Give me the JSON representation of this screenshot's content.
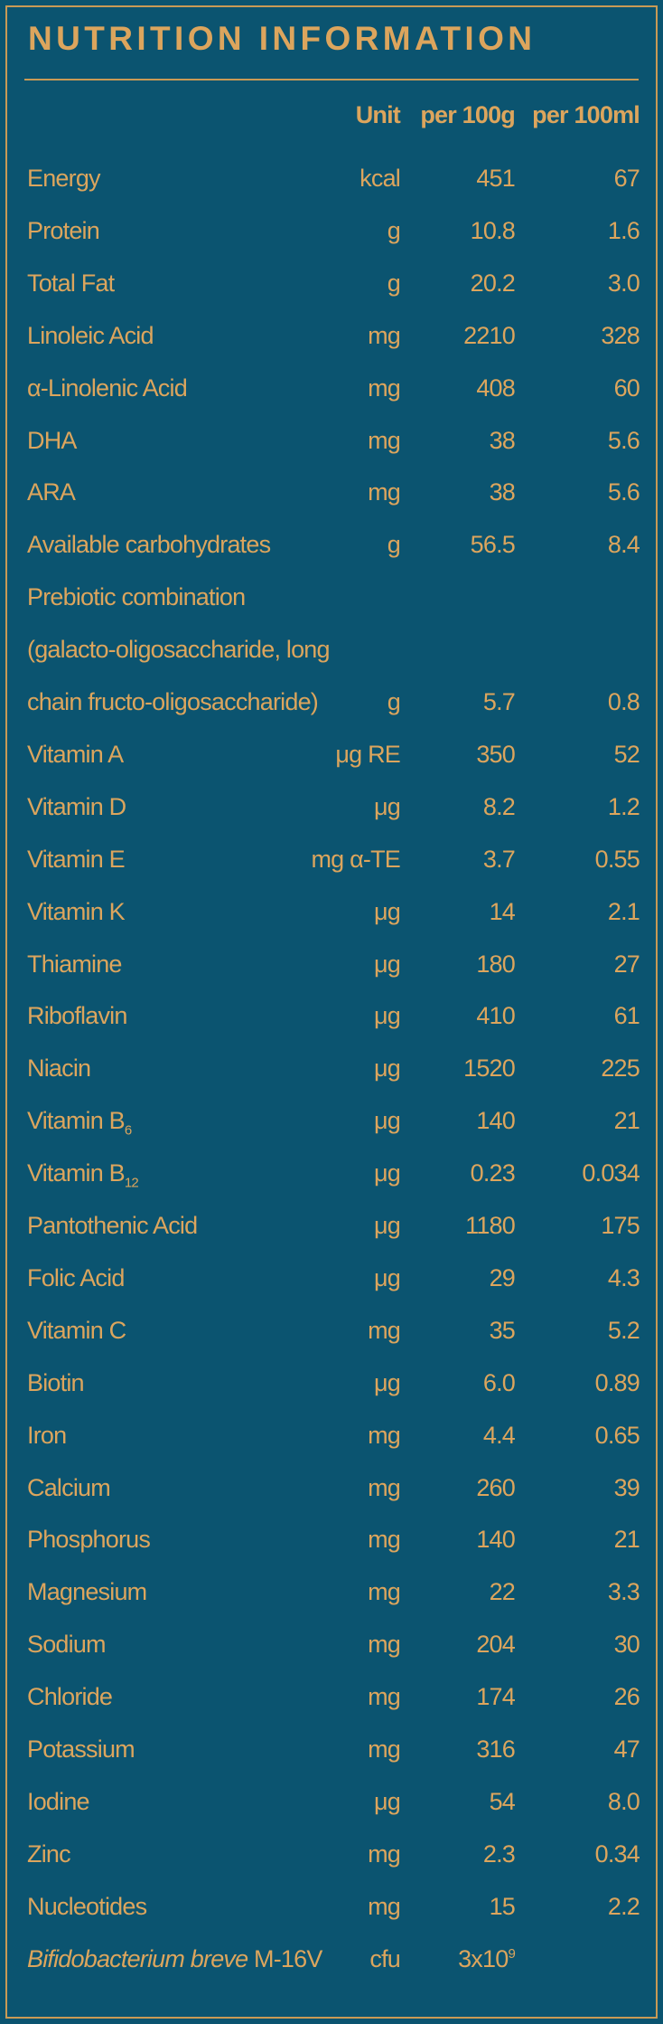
{
  "header": {
    "title": "NUTRITION INFORMATION",
    "columns": [
      "Unit",
      "per 100g",
      "per 100ml"
    ]
  },
  "table": {
    "rows": [
      {
        "name": "Energy",
        "unit": "kcal",
        "per_100g": "451",
        "per_100ml": "67"
      },
      {
        "name": "Protein",
        "unit": "g",
        "per_100g": "10.8",
        "per_100ml": "1.6"
      },
      {
        "name": "Total Fat",
        "unit": "g",
        "per_100g": "20.2",
        "per_100ml": "3.0"
      },
      {
        "name": "Linoleic Acid",
        "unit": "mg",
        "per_100g": "2210",
        "per_100ml": "328"
      },
      {
        "name": "α-Linolenic Acid",
        "unit": "mg",
        "per_100g": "408",
        "per_100ml": "60"
      },
      {
        "name": "DHA",
        "unit": "mg",
        "per_100g": "38",
        "per_100ml": "5.6"
      },
      {
        "name": "ARA",
        "unit": "mg",
        "per_100g": "38",
        "per_100ml": "5.6"
      },
      {
        "name": "Available carbohydrates",
        "unit": "g",
        "per_100g": "56.5",
        "per_100ml": "8.4"
      },
      {
        "name_lines": [
          "Prebiotic combination",
          "(galacto-oligosaccharide, long",
          "chain fructo-oligosaccharide)"
        ],
        "unit": "g",
        "per_100g": "5.7",
        "per_100ml": "0.8"
      },
      {
        "name": "Vitamin A",
        "unit": "μg RE",
        "per_100g": "350",
        "per_100ml": "52"
      },
      {
        "name": "Vitamin D",
        "unit": "μg",
        "per_100g": "8.2",
        "per_100ml": "1.2"
      },
      {
        "name": "Vitamin E",
        "unit": "mg α-TE",
        "per_100g": "3.7",
        "per_100ml": "0.55"
      },
      {
        "name": "Vitamin K",
        "unit": "μg",
        "per_100g": "14",
        "per_100ml": "2.1"
      },
      {
        "name": "Thiamine",
        "unit": "μg",
        "per_100g": "180",
        "per_100ml": "27"
      },
      {
        "name": "Riboflavin",
        "unit": "μg",
        "per_100g": "410",
        "per_100ml": "61"
      },
      {
        "name": "Niacin",
        "unit": "μg",
        "per_100g": "1520",
        "per_100ml": "225"
      },
      {
        "name": "Vitamin B",
        "name_sub": "6",
        "unit": "μg",
        "per_100g": "140",
        "per_100ml": "21"
      },
      {
        "name": "Vitamin B",
        "name_sub": "12",
        "unit": "μg",
        "per_100g": "0.23",
        "per_100ml": "0.034"
      },
      {
        "name": "Pantothenic Acid",
        "unit": "μg",
        "per_100g": "1180",
        "per_100ml": "175"
      },
      {
        "name": "Folic Acid",
        "unit": "μg",
        "per_100g": "29",
        "per_100ml": "4.3"
      },
      {
        "name": "Vitamin C",
        "unit": "mg",
        "per_100g": "35",
        "per_100ml": "5.2"
      },
      {
        "name": "Biotin",
        "unit": "μg",
        "per_100g": "6.0",
        "per_100ml": "0.89"
      },
      {
        "name": "Iron",
        "unit": "mg",
        "per_100g": "4.4",
        "per_100ml": "0.65"
      },
      {
        "name": "Calcium",
        "unit": "mg",
        "per_100g": "260",
        "per_100ml": "39"
      },
      {
        "name": "Phosphorus",
        "unit": "mg",
        "per_100g": "140",
        "per_100ml": "21"
      },
      {
        "name": "Magnesium",
        "unit": "mg",
        "per_100g": "22",
        "per_100ml": "3.3"
      },
      {
        "name": "Sodium",
        "unit": "mg",
        "per_100g": "204",
        "per_100ml": "30"
      },
      {
        "name": "Chloride",
        "unit": "mg",
        "per_100g": "174",
        "per_100ml": "26"
      },
      {
        "name": "Potassium",
        "unit": "mg",
        "per_100g": "316",
        "per_100ml": "47"
      },
      {
        "name": "Iodine",
        "unit": "μg",
        "per_100g": "54",
        "per_100ml": "8.0"
      },
      {
        "name": "Zinc",
        "unit": "mg",
        "per_100g": "2.3",
        "per_100ml": "0.34"
      },
      {
        "name": "Nucleotides",
        "unit": "mg",
        "per_100g": "15",
        "per_100ml": "2.2"
      },
      {
        "name_italic": "Bifidobacterium breve",
        "name": "M-16V",
        "unit": "cfu",
        "per_100g": "3x10",
        "per_100g_sup": "9"
      }
    ]
  }
}
